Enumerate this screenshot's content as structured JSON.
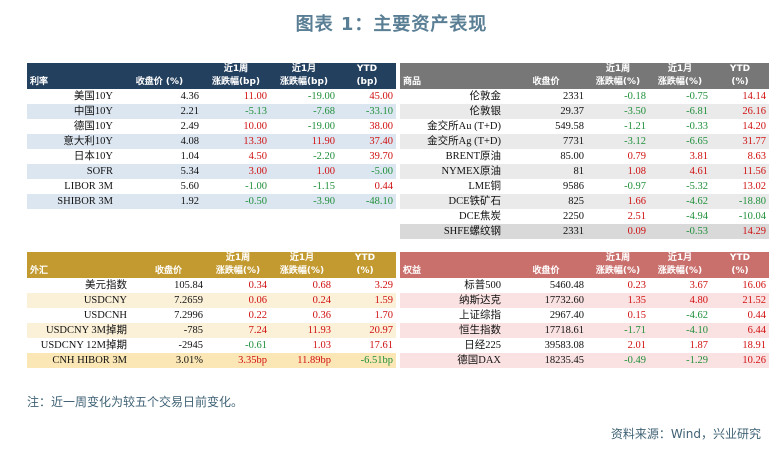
{
  "title": "图表 1：主要资产表现",
  "footnote": "注：近一周变化为较五个交易日前变化。",
  "source": "资料来源：Wind，兴业研究",
  "rates": {
    "headers": [
      [
        "利率"
      ],
      [
        "收盘价 (%)"
      ],
      [
        "近1周",
        "涨跌幅(bp)"
      ],
      [
        "近1月",
        "涨跌幅(bp)"
      ],
      [
        "YTD",
        "(bp)"
      ]
    ],
    "rows": [
      {
        "name": "美国10Y",
        "cells": [
          [
            "4.36",
            "neu"
          ],
          [
            "11.00",
            "pos"
          ],
          [
            "-19.00",
            "neg"
          ],
          [
            "45.00",
            "pos"
          ]
        ]
      },
      {
        "name": "中国10Y",
        "cells": [
          [
            "2.21",
            "neu"
          ],
          [
            "-5.13",
            "neg"
          ],
          [
            "-7.68",
            "neg"
          ],
          [
            "-33.10",
            "neg"
          ]
        ]
      },
      {
        "name": "德国10Y",
        "cells": [
          [
            "2.49",
            "neu"
          ],
          [
            "10.00",
            "pos"
          ],
          [
            "-19.00",
            "neg"
          ],
          [
            "38.00",
            "pos"
          ]
        ]
      },
      {
        "name": "意大利10Y",
        "cells": [
          [
            "4.08",
            "neu"
          ],
          [
            "13.30",
            "pos"
          ],
          [
            "11.90",
            "pos"
          ],
          [
            "37.40",
            "pos"
          ]
        ]
      },
      {
        "name": "日本10Y",
        "cells": [
          [
            "1.04",
            "neu"
          ],
          [
            "4.50",
            "pos"
          ],
          [
            "-2.20",
            "neg"
          ],
          [
            "39.70",
            "pos"
          ]
        ]
      },
      {
        "name": "SOFR",
        "cells": [
          [
            "5.34",
            "neu"
          ],
          [
            "3.00",
            "pos"
          ],
          [
            "1.00",
            "pos"
          ],
          [
            "-5.00",
            "neg"
          ]
        ]
      },
      {
        "name": "LIBOR 3M",
        "cells": [
          [
            "5.60",
            "neu"
          ],
          [
            "-1.00",
            "neg"
          ],
          [
            "-1.15",
            "neg"
          ],
          [
            "0.44",
            "pos"
          ]
        ]
      },
      {
        "name": "SHIBOR 3M",
        "cells": [
          [
            "1.92",
            "neu"
          ],
          [
            "-0.50",
            "neg"
          ],
          [
            "-3.90",
            "neg"
          ],
          [
            "-48.10",
            "neg"
          ]
        ]
      }
    ]
  },
  "commodities": {
    "headers": [
      [
        "商品"
      ],
      [
        "收盘价"
      ],
      [
        "近1周",
        "涨跌幅(%)"
      ],
      [
        "近1月",
        "涨跌幅(%)"
      ],
      [
        "YTD",
        "(%)"
      ]
    ],
    "rows": [
      {
        "name": "伦敦金",
        "cells": [
          [
            "2331",
            "neu"
          ],
          [
            "-0.18",
            "neg"
          ],
          [
            "-0.75",
            "neg"
          ],
          [
            "14.14",
            "pos"
          ]
        ]
      },
      {
        "name": "伦敦银",
        "cells": [
          [
            "29.37",
            "neu"
          ],
          [
            "-3.50",
            "neg"
          ],
          [
            "-6.81",
            "neg"
          ],
          [
            "26.16",
            "pos"
          ]
        ]
      },
      {
        "name": "金交所Au (T+D)",
        "cells": [
          [
            "549.58",
            "neu"
          ],
          [
            "-1.21",
            "neg"
          ],
          [
            "-0.33",
            "neg"
          ],
          [
            "14.20",
            "pos"
          ]
        ]
      },
      {
        "name": "金交所Ag (T+D)",
        "cells": [
          [
            "7731",
            "neu"
          ],
          [
            "-3.12",
            "neg"
          ],
          [
            "-6.65",
            "neg"
          ],
          [
            "31.77",
            "pos"
          ]
        ]
      },
      {
        "name": "BRENT原油",
        "cells": [
          [
            "85.00",
            "neu"
          ],
          [
            "0.79",
            "pos"
          ],
          [
            "3.81",
            "pos"
          ],
          [
            "8.63",
            "pos"
          ]
        ]
      },
      {
        "name": "NYMEX原油",
        "cells": [
          [
            "81",
            "neu"
          ],
          [
            "1.08",
            "pos"
          ],
          [
            "4.61",
            "pos"
          ],
          [
            "11.56",
            "pos"
          ]
        ]
      },
      {
        "name": "LME铜",
        "cells": [
          [
            "9586",
            "neu"
          ],
          [
            "-0.97",
            "neg"
          ],
          [
            "-5.32",
            "neg"
          ],
          [
            "13.02",
            "pos"
          ]
        ]
      },
      {
        "name": "DCE铁矿石",
        "cells": [
          [
            "825",
            "neu"
          ],
          [
            "1.66",
            "pos"
          ],
          [
            "-4.62",
            "neg"
          ],
          [
            "-18.80",
            "neg"
          ]
        ]
      },
      {
        "name": "DCE焦炭",
        "cells": [
          [
            "2250",
            "neu"
          ],
          [
            "2.51",
            "pos"
          ],
          [
            "-4.94",
            "neg"
          ],
          [
            "-10.04",
            "neg"
          ]
        ]
      },
      {
        "name": "SHFE螺纹钢",
        "cells": [
          [
            "2331",
            "neu"
          ],
          [
            "0.09",
            "pos"
          ],
          [
            "-0.53",
            "neg"
          ],
          [
            "14.29",
            "pos"
          ]
        ]
      }
    ]
  },
  "fx": {
    "headers": [
      [
        "外汇"
      ],
      [
        "收盘价"
      ],
      [
        "近1周",
        "涨跌幅(%)"
      ],
      [
        "近1月",
        "涨跌幅(%)"
      ],
      [
        "YTD",
        "(%)"
      ]
    ],
    "rows": [
      {
        "name": "美元指数",
        "cells": [
          [
            "105.84",
            "neu"
          ],
          [
            "0.34",
            "pos"
          ],
          [
            "0.68",
            "pos"
          ],
          [
            "3.29",
            "pos"
          ]
        ]
      },
      {
        "name": "USDCNY",
        "cells": [
          [
            "7.2659",
            "neu"
          ],
          [
            "0.06",
            "pos"
          ],
          [
            "0.24",
            "pos"
          ],
          [
            "1.59",
            "pos"
          ]
        ]
      },
      {
        "name": "USDCNH",
        "cells": [
          [
            "7.2996",
            "neu"
          ],
          [
            "0.22",
            "pos"
          ],
          [
            "0.36",
            "pos"
          ],
          [
            "1.70",
            "pos"
          ]
        ]
      },
      {
        "name": "USDCNY 3M掉期",
        "cells": [
          [
            "-785",
            "neu"
          ],
          [
            "7.24",
            "pos"
          ],
          [
            "11.93",
            "pos"
          ],
          [
            "20.97",
            "pos"
          ]
        ]
      },
      {
        "name": "USDCNY 12M掉期",
        "cells": [
          [
            "-2945",
            "neu"
          ],
          [
            "-0.61",
            "neg"
          ],
          [
            "1.03",
            "pos"
          ],
          [
            "17.61",
            "pos"
          ]
        ]
      },
      {
        "name": "CNH HIBOR 3M",
        "cells": [
          [
            "3.01%",
            "neu"
          ],
          [
            "3.35bp",
            "pos"
          ],
          [
            "11.89bp",
            "pos"
          ],
          [
            "-6.51bp",
            "neg"
          ]
        ]
      }
    ]
  },
  "equities": {
    "headers": [
      [
        "权益"
      ],
      [
        "收盘价"
      ],
      [
        "近1周",
        "涨跌幅(%)"
      ],
      [
        "近1月",
        "涨跌幅(%)"
      ],
      [
        "YTD",
        "(%)"
      ]
    ],
    "rows": [
      {
        "name": "标普500",
        "cells": [
          [
            "5460.48",
            "neu"
          ],
          [
            "0.23",
            "pos"
          ],
          [
            "3.67",
            "pos"
          ],
          [
            "16.06",
            "pos"
          ]
        ]
      },
      {
        "name": "纳斯达克",
        "cells": [
          [
            "17732.60",
            "neu"
          ],
          [
            "1.35",
            "pos"
          ],
          [
            "4.80",
            "pos"
          ],
          [
            "21.52",
            "pos"
          ]
        ]
      },
      {
        "name": "上证综指",
        "cells": [
          [
            "2967.40",
            "neu"
          ],
          [
            "0.15",
            "pos"
          ],
          [
            "-4.62",
            "neg"
          ],
          [
            "0.44",
            "pos"
          ]
        ]
      },
      {
        "name": "恒生指数",
        "cells": [
          [
            "17718.61",
            "neu"
          ],
          [
            "-1.71",
            "neg"
          ],
          [
            "-4.10",
            "neg"
          ],
          [
            "6.44",
            "pos"
          ]
        ]
      },
      {
        "name": "日经225",
        "cells": [
          [
            "39583.08",
            "neu"
          ],
          [
            "2.01",
            "pos"
          ],
          [
            "1.87",
            "pos"
          ],
          [
            "18.91",
            "pos"
          ]
        ]
      },
      {
        "name": "德国DAX",
        "cells": [
          [
            "18235.45",
            "neu"
          ],
          [
            "-0.49",
            "neg"
          ],
          [
            "-1.29",
            "neg"
          ],
          [
            "10.26",
            "pos"
          ]
        ]
      }
    ]
  }
}
